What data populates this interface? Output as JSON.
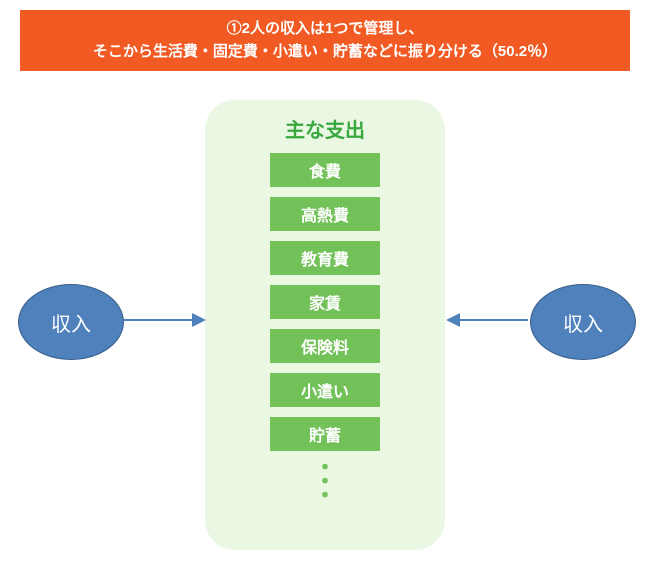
{
  "header": {
    "line1": "①2人の収入は1つで管理し、",
    "line2": "そこから生活費・固定費・小遣い・貯蓄などに振り分ける（50.2％）",
    "bg_color": "#f15a22",
    "text_color": "#ffffff"
  },
  "expense_box": {
    "title": "主な支出",
    "title_color": "#39a83f",
    "bg_color": "#e9f7e3",
    "item_bg_color": "#72c159",
    "items": [
      "食費",
      "高熱費",
      "教育費",
      "家賃",
      "保険料",
      "小遣い",
      "貯蓄"
    ],
    "ellipsis_color": "#72c159"
  },
  "income": {
    "left_label": "収入",
    "right_label": "収入",
    "fill_color": "#4f81bd",
    "border_color": "#3a5f8a"
  },
  "arrow": {
    "color": "#4f81bd"
  }
}
